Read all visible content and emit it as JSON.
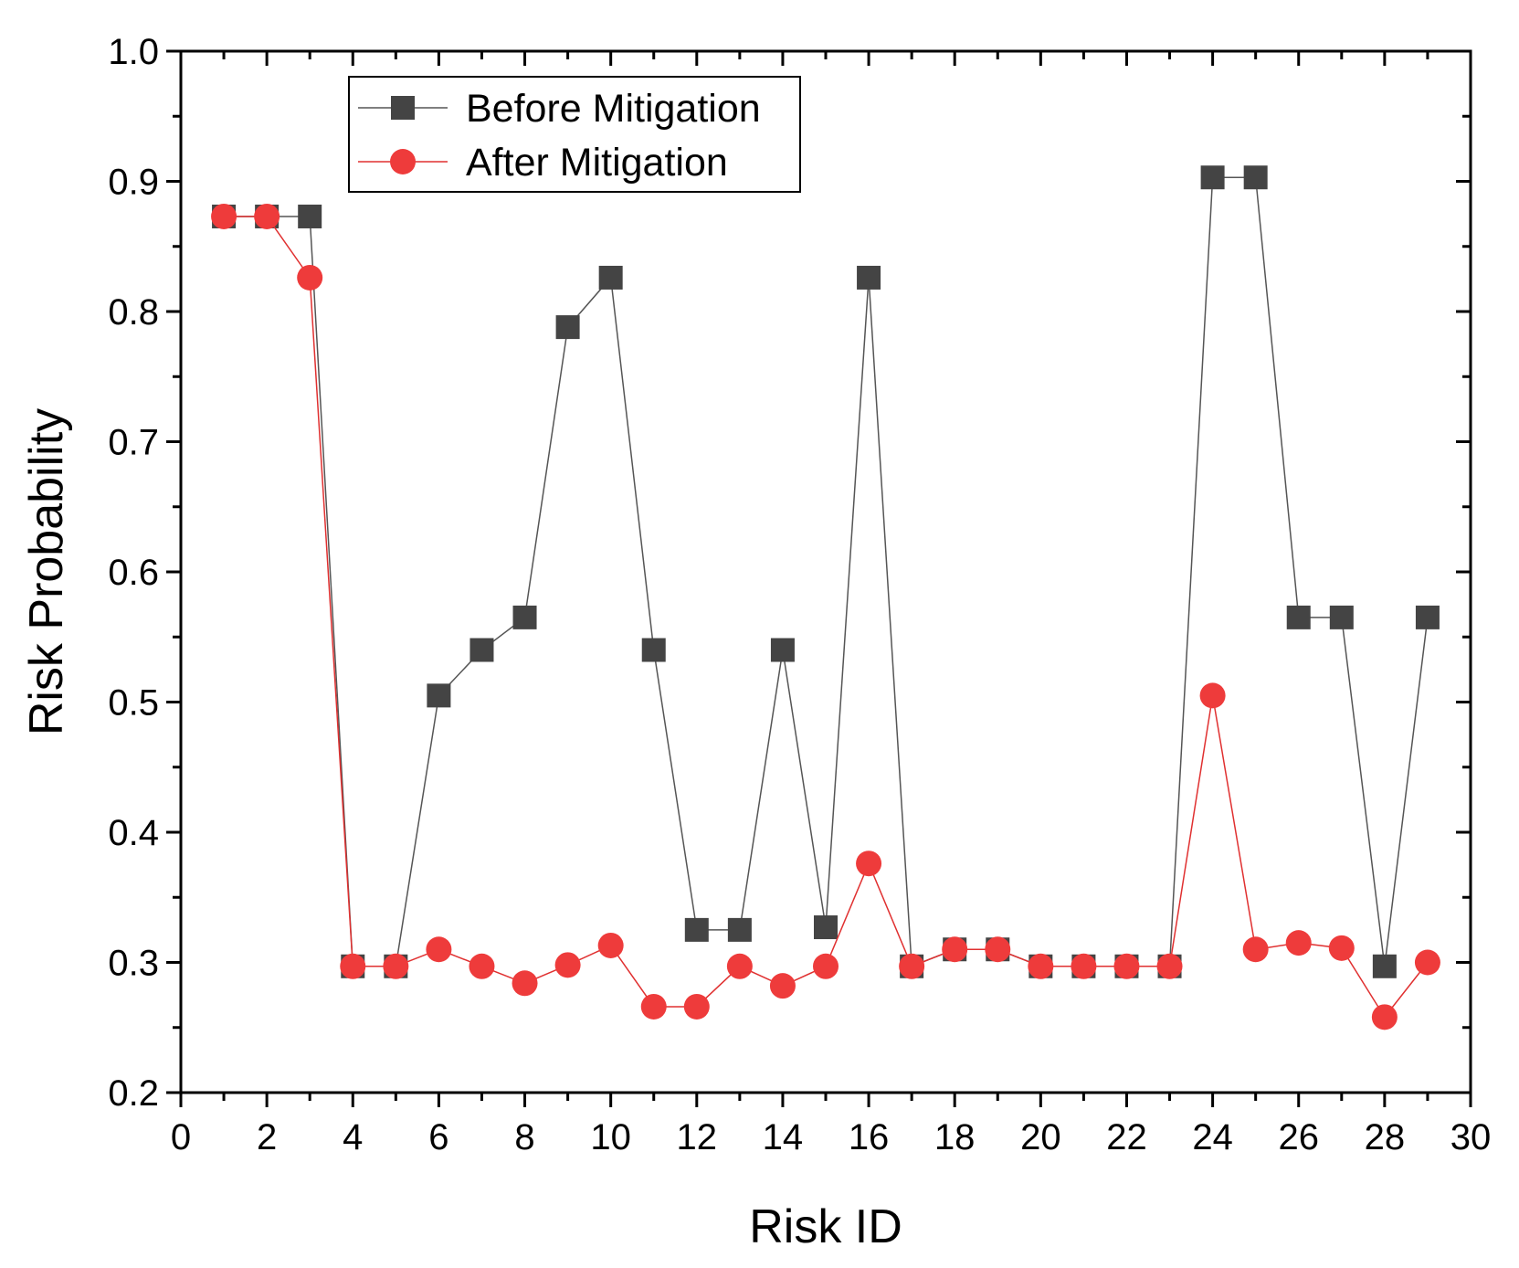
{
  "chart_data": {
    "type": "line",
    "xlabel": "Risk ID",
    "ylabel": "Risk Probability",
    "xlim": [
      0,
      30
    ],
    "ylim": [
      0.2,
      1.0
    ],
    "xticks": [
      0,
      2,
      4,
      6,
      8,
      10,
      12,
      14,
      16,
      18,
      20,
      22,
      24,
      26,
      28,
      30
    ],
    "yticks": [
      "0.2",
      "0.3",
      "0.4",
      "0.5",
      "0.6",
      "0.7",
      "0.8",
      "0.9",
      "1.0"
    ],
    "grid": false,
    "legend_position": "top-left",
    "x": [
      1,
      2,
      3,
      4,
      5,
      6,
      7,
      8,
      9,
      10,
      11,
      12,
      13,
      14,
      15,
      16,
      17,
      18,
      19,
      20,
      21,
      22,
      23,
      24,
      25,
      26,
      27,
      28,
      29
    ],
    "series": [
      {
        "name": "Before Mitigation",
        "marker": "square",
        "color": "#444444",
        "line_color": "#555555",
        "values": [
          0.873,
          0.873,
          0.873,
          0.297,
          0.297,
          0.505,
          0.54,
          0.565,
          0.788,
          0.826,
          0.54,
          0.325,
          0.325,
          0.54,
          0.327,
          0.826,
          0.297,
          0.31,
          0.31,
          0.297,
          0.297,
          0.297,
          0.297,
          0.903,
          0.903,
          0.565,
          0.565,
          0.297,
          0.565
        ]
      },
      {
        "name": "After Mitigation",
        "marker": "circle",
        "color": "#ee3b3b",
        "line_color": "#e03030",
        "values": [
          0.873,
          0.873,
          0.826,
          0.297,
          0.297,
          0.31,
          0.297,
          0.284,
          0.298,
          0.313,
          0.266,
          0.266,
          0.297,
          0.282,
          0.297,
          0.376,
          0.297,
          0.31,
          0.31,
          0.297,
          0.297,
          0.297,
          0.297,
          0.505,
          0.31,
          0.315,
          0.311,
          0.258,
          0.3
        ]
      }
    ]
  }
}
